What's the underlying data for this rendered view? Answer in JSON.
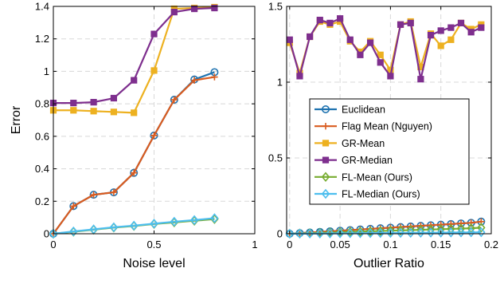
{
  "colors": {
    "Euclidean": "#1f73b0",
    "Flag Mean (Nguyen)": "#d95b1f",
    "GR-Mean": "#edb120",
    "GR-Median": "#7e2f8e",
    "FL-Mean (Ours)": "#77ac30",
    "FL-Median (Ours)": "#4dbeee"
  },
  "chart_data": [
    {
      "type": "line",
      "xlabel": "Noise level",
      "ylabel": "Error",
      "xlim": [
        0,
        1
      ],
      "ylim": [
        0,
        1.4
      ],
      "xticks": [
        "0",
        "0.5",
        "1"
      ],
      "yticks": [
        "0",
        "0.2",
        "0.4",
        "0.6",
        "0.8",
        "1",
        "1.2",
        "1.4"
      ],
      "grid": "dashed",
      "x": [
        0,
        0.1,
        0.2,
        0.3,
        0.4,
        0.5,
        0.6,
        0.7,
        0.8
      ],
      "series": [
        {
          "name": "Euclidean",
          "marker": "circle",
          "values": [
            0,
            0.17,
            0.24,
            0.255,
            0.375,
            0.605,
            0.825,
            0.95,
            0.995
          ]
        },
        {
          "name": "Flag Mean (Nguyen)",
          "marker": "plus",
          "values": [
            0,
            0.17,
            0.24,
            0.255,
            0.375,
            0.605,
            0.825,
            0.945,
            0.965
          ]
        },
        {
          "name": "GR-Mean",
          "marker": "square",
          "values": [
            0.76,
            0.76,
            0.755,
            0.75,
            0.745,
            1.005,
            1.385,
            1.39,
            1.395
          ]
        },
        {
          "name": "GR-Median",
          "marker": "square",
          "values": [
            0.805,
            0.805,
            0.81,
            0.835,
            0.945,
            1.23,
            1.365,
            1.385,
            1.39
          ]
        },
        {
          "name": "FL-Mean (Ours)",
          "marker": "diamond",
          "values": [
            0,
            0.012,
            0.025,
            0.038,
            0.048,
            0.06,
            0.07,
            0.08,
            0.09
          ]
        },
        {
          "name": "FL-Median (Ours)",
          "marker": "diamond",
          "values": [
            0,
            0.014,
            0.027,
            0.04,
            0.05,
            0.062,
            0.074,
            0.084,
            0.096
          ]
        }
      ]
    },
    {
      "type": "line",
      "xlabel": "Outlier Ratio",
      "ylabel": "",
      "xlim": [
        -0.003,
        0.2
      ],
      "ylim": [
        0,
        1.5
      ],
      "xticks": [
        "0",
        "0.05",
        "0.1",
        "0.15",
        "0.2"
      ],
      "yticks": [
        "0",
        "0.5",
        "1",
        "1.5"
      ],
      "grid": "dashed",
      "legend": "center-right",
      "x": [
        0,
        0.01,
        0.02,
        0.03,
        0.04,
        0.05,
        0.06,
        0.07,
        0.08,
        0.09,
        0.1,
        0.11,
        0.12,
        0.13,
        0.14,
        0.15,
        0.16,
        0.17,
        0.18,
        0.19
      ],
      "series": [
        {
          "name": "Euclidean",
          "marker": "circle",
          "values": [
            0,
            0.004,
            0.008,
            0.012,
            0.016,
            0.02,
            0.024,
            0.028,
            0.032,
            0.036,
            0.04,
            0.044,
            0.048,
            0.052,
            0.056,
            0.06,
            0.064,
            0.068,
            0.072,
            0.08
          ]
        },
        {
          "name": "Flag Mean (Nguyen)",
          "marker": "plus",
          "values": [
            0,
            0.004,
            0.008,
            0.012,
            0.016,
            0.02,
            0.024,
            0.028,
            0.032,
            0.036,
            0.04,
            0.044,
            0.048,
            0.052,
            0.056,
            0.06,
            0.064,
            0.068,
            0.072,
            0.08
          ]
        },
        {
          "name": "GR-Mean",
          "marker": "square",
          "values": [
            1.26,
            1.06,
            1.3,
            1.4,
            1.38,
            1.4,
            1.27,
            1.2,
            1.27,
            1.18,
            1.08,
            1.38,
            1.4,
            1.1,
            1.32,
            1.24,
            1.28,
            1.39,
            1.35,
            1.38
          ]
        },
        {
          "name": "GR-Median",
          "marker": "square",
          "values": [
            1.28,
            1.04,
            1.3,
            1.41,
            1.39,
            1.42,
            1.28,
            1.18,
            1.26,
            1.13,
            1.04,
            1.38,
            1.39,
            1.02,
            1.31,
            1.34,
            1.36,
            1.39,
            1.33,
            1.36
          ]
        },
        {
          "name": "FL-Mean (Ours)",
          "marker": "diamond",
          "values": [
            0,
            0.002,
            0.004,
            0.006,
            0.008,
            0.01,
            0.012,
            0.014,
            0.016,
            0.018,
            0.02,
            0.022,
            0.024,
            0.026,
            0.028,
            0.03,
            0.032,
            0.034,
            0.036,
            0.04
          ]
        },
        {
          "name": "FL-Median (Ours)",
          "marker": "diamond",
          "values": [
            0,
            0.0005,
            0.001,
            0.0015,
            0.002,
            0.0025,
            0.003,
            0.0035,
            0.004,
            0.0045,
            0.005,
            0.0055,
            0.006,
            0.0065,
            0.007,
            0.0075,
            0.008,
            0.0085,
            0.009,
            0.01
          ]
        }
      ]
    }
  ]
}
